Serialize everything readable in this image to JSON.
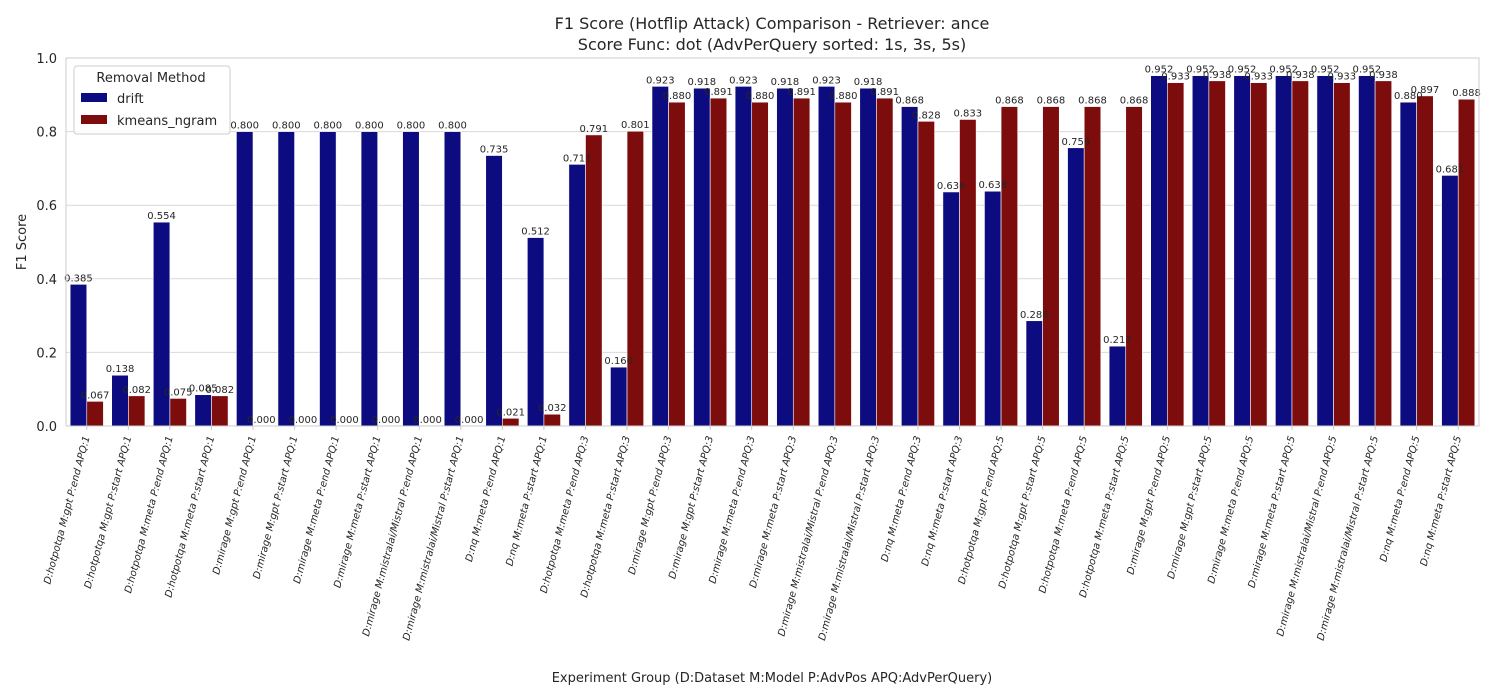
{
  "chart_data": {
    "type": "bar",
    "title": "F1 Score (Hotflip Attack) Comparison - Retriever: ance",
    "subtitle": "Score Func: dot (AdvPerQuery sorted: 1s, 3s, 5s)",
    "xlabel": "Experiment Group (D:Dataset M:Model P:AdvPos APQ:AdvPerQuery)",
    "ylabel": "F1 Score",
    "ylim": [
      0,
      1.0
    ],
    "yticks": [
      "0.0",
      "0.2",
      "0.4",
      "0.6",
      "0.8",
      "1.0"
    ],
    "grid": true,
    "legend": {
      "title": "Removal Method",
      "position": "top-left"
    },
    "categories": [
      "D:hotpotqa M:gpt P:end APQ:1",
      "D:hotpotqa M:gpt P:start APQ:1",
      "D:hotpotqa M:meta P:end APQ:1",
      "D:hotpotqa M:meta P:start APQ:1",
      "D:mirage M:gpt P:end APQ:1",
      "D:mirage M:gpt P:start APQ:1",
      "D:mirage M:meta P:end APQ:1",
      "D:mirage M:meta P:start APQ:1",
      "D:mirage M:mistralai/Mistral P:end APQ:1",
      "D:mirage M:mistralai/Mistral P:start APQ:1",
      "D:nq M:meta P:end APQ:1",
      "D:nq M:meta P:start APQ:1",
      "D:hotpotqa M:meta P:end APQ:3",
      "D:hotpotqa M:meta P:start APQ:3",
      "D:mirage M:gpt P:end APQ:3",
      "D:mirage M:gpt P:start APQ:3",
      "D:mirage M:meta P:end APQ:3",
      "D:mirage M:meta P:start APQ:3",
      "D:mirage M:mistralai/Mistral P:end APQ:3",
      "D:mirage M:mistralai/Mistral P:start APQ:3",
      "D:nq M:meta P:end APQ:3",
      "D:nq M:meta P:start APQ:3",
      "D:hotpotqa M:gpt P:end APQ:5",
      "D:hotpotqa M:gpt P:start APQ:5",
      "D:hotpotqa M:meta P:end APQ:5",
      "D:hotpotqa M:meta P:start APQ:5",
      "D:mirage M:gpt P:end APQ:5",
      "D:mirage M:gpt P:start APQ:5",
      "D:mirage M:meta P:end APQ:5",
      "D:mirage M:meta P:start APQ:5",
      "D:mirage M:mistralai/Mistral P:end APQ:5",
      "D:mirage M:mistralai/Mistral P:start APQ:5",
      "D:nq M:meta P:end APQ:5",
      "D:nq M:meta P:start APQ:5"
    ],
    "series": [
      {
        "name": "drift",
        "color": "#0c0c80",
        "values": [
          0.385,
          0.138,
          0.554,
          0.085,
          0.8,
          0.8,
          0.8,
          0.8,
          0.8,
          0.8,
          0.735,
          0.512,
          0.711,
          0.16,
          0.923,
          0.918,
          0.923,
          0.918,
          0.923,
          0.918,
          0.868,
          0.636,
          0.638,
          0.286,
          0.756,
          0.217,
          0.952,
          0.952,
          0.952,
          0.952,
          0.952,
          0.952,
          0.88,
          0.681
        ],
        "labels": [
          "0.385",
          "0.138",
          "0.554",
          "0.085",
          "0.800",
          "0.800",
          "0.800",
          "0.800",
          "0.800",
          "0.800",
          "0.735",
          "0.512",
          "0.711",
          "0.160",
          "0.923",
          "0.918",
          "0.923",
          "0.918",
          "0.923",
          "0.918",
          "0.868",
          "0.636",
          "0.638",
          "0.286",
          "0.756",
          "0.217",
          "0.952",
          "0.952",
          "0.952",
          "0.952",
          "0.952",
          "0.952",
          "0.880",
          "0.681"
        ]
      },
      {
        "name": "kmeans_ngram",
        "color": "#7d0c0c",
        "values": [
          0.067,
          0.082,
          0.075,
          0.082,
          0.0,
          0.0,
          0.0,
          0.0,
          0.0,
          0.0,
          0.021,
          0.032,
          0.791,
          0.801,
          0.88,
          0.891,
          0.88,
          0.891,
          0.88,
          0.891,
          0.828,
          0.833,
          0.868,
          0.868,
          0.868,
          0.868,
          0.933,
          0.938,
          0.933,
          0.938,
          0.933,
          0.938,
          0.897,
          0.888
        ],
        "labels": [
          "0.067",
          "0.082",
          "0.075",
          "0.082",
          "0.000",
          "0.000",
          "0.000",
          "0.000",
          "0.000",
          "0.000",
          "0.021",
          "0.032",
          "0.791",
          "0.801",
          "0.880",
          "0.891",
          "0.880",
          "0.891",
          "0.880",
          "0.891",
          "0.828",
          "0.833",
          "0.868",
          "0.868",
          "0.868",
          "0.868",
          "0.933",
          "0.938",
          "0.933",
          "0.938",
          "0.933",
          "0.938",
          "0.897",
          "0.888"
        ]
      }
    ]
  }
}
